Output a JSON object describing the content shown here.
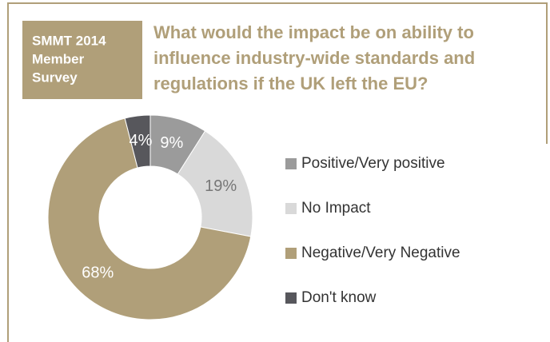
{
  "chart_data": {
    "type": "donut",
    "badge": [
      "SMMT 2014",
      "Member",
      "Survey"
    ],
    "title": [
      "What would the impact be on ability to",
      "influence industry-wide standards and",
      "regulations if the UK left the EU?"
    ],
    "categories": [
      "Positive/Very positive",
      "No Impact",
      "Negative/Very Negative",
      "Don't know"
    ],
    "values": [
      9,
      19,
      68,
      4
    ],
    "value_labels": [
      "9%",
      "19%",
      "68%",
      "4%"
    ],
    "colors": [
      "#9b9b9b",
      "#d9d9d9",
      "#b09f79",
      "#57575c"
    ]
  }
}
